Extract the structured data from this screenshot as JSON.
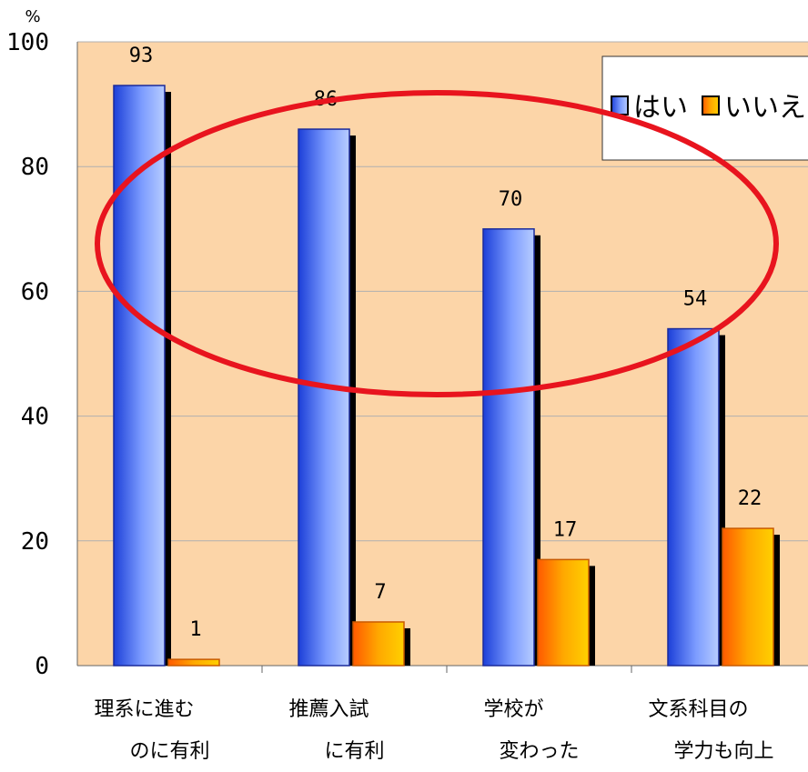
{
  "chart_data": {
    "type": "bar",
    "unit_label": "%",
    "categories": [
      [
        "理系に進む",
        "のに有利"
      ],
      [
        "推薦入試",
        "に有利"
      ],
      [
        "学校が",
        "変わった"
      ],
      [
        "文系科目の",
        "学力も向上"
      ]
    ],
    "series": [
      {
        "name": "はい",
        "values": [
          93,
          86,
          70,
          54
        ],
        "color": "#6f8ff5"
      },
      {
        "name": "いいえ",
        "values": [
          1,
          7,
          17,
          22
        ],
        "color": "#ffb000"
      }
    ],
    "ylim": [
      0,
      100
    ],
    "yticks": [
      0,
      20,
      40,
      60,
      80,
      100
    ],
    "grid": true,
    "legend_position": "top-right",
    "plot_background": "#fcd5a8",
    "highlight_color": "#e8141e"
  }
}
